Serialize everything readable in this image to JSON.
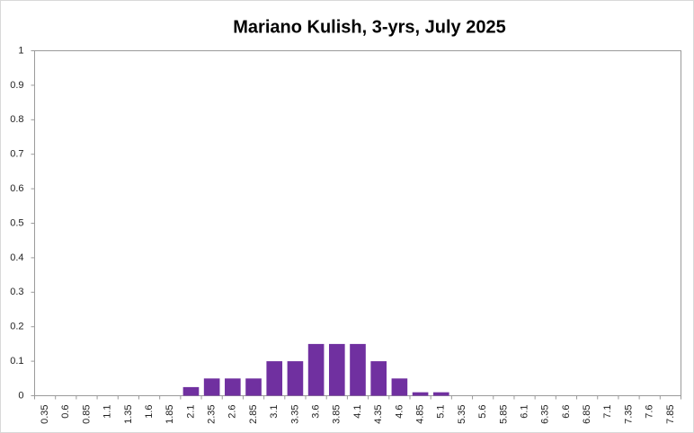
{
  "chart_data": {
    "type": "bar",
    "title": "Mariano Kulish, 3-yrs, July 2025",
    "categories": [
      "0.35",
      "0.6",
      "0.85",
      "1.1",
      "1.35",
      "1.6",
      "1.85",
      "2.1",
      "2.35",
      "2.6",
      "2.85",
      "3.1",
      "3.35",
      "3.6",
      "3.85",
      "4.1",
      "4.35",
      "4.6",
      "4.85",
      "5.1",
      "5.35",
      "5.6",
      "5.85",
      "6.1",
      "6.35",
      "6.6",
      "6.85",
      "7.1",
      "7.35",
      "7.6",
      "7.85"
    ],
    "values": [
      0,
      0,
      0,
      0,
      0,
      0,
      0,
      0.025,
      0.05,
      0.05,
      0.05,
      0.1,
      0.1,
      0.15,
      0.15,
      0.15,
      0.1,
      0.05,
      0.01,
      0.01,
      0,
      0,
      0,
      0,
      0,
      0,
      0,
      0,
      0,
      0,
      0
    ],
    "color": "#7030a0",
    "ylim": [
      0,
      1
    ],
    "yticks": [
      0,
      0.1,
      0.2,
      0.3,
      0.4,
      0.5,
      0.6,
      0.7,
      0.8,
      0.9,
      1
    ],
    "grid": false
  }
}
